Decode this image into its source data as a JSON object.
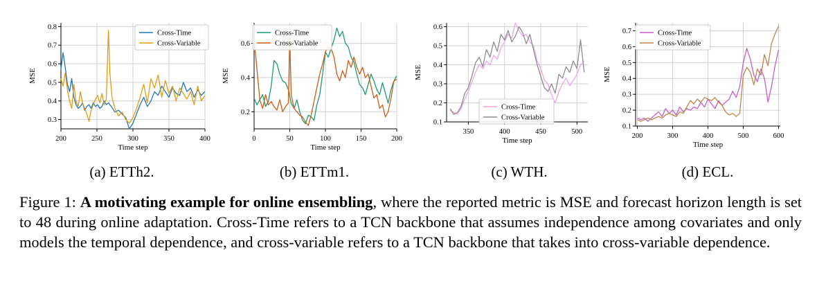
{
  "chart_data": [
    {
      "type": "line",
      "panel": "a",
      "xlabel": "Time step",
      "ylabel": "MSE",
      "xlim": [
        200,
        400
      ],
      "ylim": [
        0.25,
        0.82
      ],
      "xticks": [
        200,
        250,
        300,
        350,
        400
      ],
      "yticks": [
        0.3,
        0.4,
        0.5,
        0.6,
        0.7,
        0.8
      ],
      "grid": true,
      "legend_position": "top-right",
      "series": [
        {
          "name": "Cross-Time",
          "color": "#1f77b4",
          "x": [
            200,
            203,
            206,
            209,
            212,
            215,
            218,
            221,
            224,
            227,
            230,
            233,
            236,
            239,
            242,
            245,
            248,
            251,
            254,
            257,
            260,
            263,
            266,
            270,
            275,
            280,
            285,
            290,
            295,
            300,
            305,
            310,
            315,
            320,
            325,
            330,
            335,
            340,
            345,
            350,
            355,
            360,
            365,
            370,
            375,
            380,
            385,
            390,
            395,
            400
          ],
          "y": [
            0.57,
            0.66,
            0.58,
            0.49,
            0.45,
            0.52,
            0.42,
            0.38,
            0.36,
            0.37,
            0.39,
            0.35,
            0.37,
            0.38,
            0.36,
            0.39,
            0.37,
            0.38,
            0.36,
            0.37,
            0.4,
            0.38,
            0.39,
            0.37,
            0.34,
            0.35,
            0.33,
            0.31,
            0.25,
            0.28,
            0.33,
            0.38,
            0.42,
            0.37,
            0.4,
            0.45,
            0.43,
            0.48,
            0.45,
            0.42,
            0.47,
            0.44,
            0.43,
            0.5,
            0.45,
            0.47,
            0.42,
            0.46,
            0.43,
            0.45
          ]
        },
        {
          "name": "Cross-Variable",
          "color": "#e69b11",
          "x": [
            200,
            203,
            206,
            209,
            212,
            215,
            218,
            221,
            224,
            227,
            230,
            233,
            236,
            239,
            242,
            245,
            248,
            251,
            254,
            257,
            260,
            263,
            266,
            268,
            271,
            275,
            280,
            285,
            290,
            295,
            300,
            305,
            310,
            315,
            320,
            325,
            330,
            335,
            340,
            345,
            350,
            355,
            360,
            365,
            370,
            375,
            380,
            385,
            390,
            395,
            400
          ],
          "y": [
            0.52,
            0.48,
            0.55,
            0.46,
            0.4,
            0.36,
            0.49,
            0.4,
            0.37,
            0.45,
            0.39,
            0.36,
            0.33,
            0.29,
            0.35,
            0.38,
            0.41,
            0.43,
            0.39,
            0.44,
            0.38,
            0.41,
            0.78,
            0.55,
            0.42,
            0.36,
            0.32,
            0.34,
            0.3,
            0.28,
            0.31,
            0.36,
            0.42,
            0.49,
            0.39,
            0.52,
            0.47,
            0.54,
            0.42,
            0.51,
            0.44,
            0.48,
            0.4,
            0.47,
            0.44,
            0.41,
            0.45,
            0.38,
            0.48,
            0.4,
            0.43
          ]
        }
      ]
    },
    {
      "type": "line",
      "panel": "b",
      "xlabel": "Time step",
      "ylabel": "MSE",
      "xlim": [
        0,
        200
      ],
      "ylim": [
        0.1,
        0.72
      ],
      "xticks": [
        0,
        50,
        100,
        150,
        200
      ],
      "yticks": [
        0.2,
        0.4,
        0.6
      ],
      "grid": true,
      "legend_position": "top",
      "series": [
        {
          "name": "Cross-Time",
          "color": "#1a9a72",
          "x": [
            0,
            4,
            8,
            12,
            16,
            20,
            24,
            28,
            32,
            36,
            40,
            44,
            48,
            52,
            56,
            60,
            64,
            68,
            72,
            76,
            80,
            84,
            88,
            92,
            96,
            100,
            104,
            108,
            112,
            116,
            120,
            124,
            128,
            132,
            136,
            140,
            144,
            148,
            152,
            156,
            160,
            164,
            168,
            172,
            176,
            180,
            184,
            188,
            192,
            196,
            200
          ],
          "y": [
            0.28,
            0.24,
            0.27,
            0.3,
            0.23,
            0.26,
            0.35,
            0.5,
            0.48,
            0.42,
            0.38,
            0.37,
            0.33,
            0.25,
            0.22,
            0.27,
            0.2,
            0.15,
            0.13,
            0.18,
            0.17,
            0.15,
            0.24,
            0.3,
            0.42,
            0.55,
            0.52,
            0.57,
            0.62,
            0.69,
            0.64,
            0.67,
            0.6,
            0.58,
            0.52,
            0.49,
            0.42,
            0.36,
            0.34,
            0.3,
            0.36,
            0.42,
            0.38,
            0.33,
            0.3,
            0.37,
            0.31,
            0.25,
            0.33,
            0.38,
            0.41
          ]
        },
        {
          "name": "Cross-Variable",
          "color": "#d35a10",
          "x": [
            0,
            4,
            8,
            12,
            16,
            20,
            24,
            28,
            32,
            36,
            40,
            44,
            48,
            50,
            52,
            56,
            60,
            64,
            68,
            72,
            76,
            80,
            84,
            88,
            92,
            96,
            100,
            104,
            108,
            112,
            116,
            120,
            124,
            128,
            132,
            136,
            140,
            144,
            148,
            152,
            156,
            160,
            164,
            168,
            172,
            176,
            180,
            184,
            188,
            192,
            196,
            200
          ],
          "y": [
            0.63,
            0.45,
            0.27,
            0.22,
            0.3,
            0.24,
            0.26,
            0.23,
            0.21,
            0.27,
            0.2,
            0.23,
            0.25,
            0.63,
            0.3,
            0.22,
            0.2,
            0.18,
            0.17,
            0.14,
            0.12,
            0.18,
            0.26,
            0.34,
            0.42,
            0.48,
            0.55,
            0.58,
            0.57,
            0.52,
            0.42,
            0.38,
            0.44,
            0.4,
            0.5,
            0.46,
            0.52,
            0.46,
            0.42,
            0.46,
            0.4,
            0.42,
            0.35,
            0.28,
            0.3,
            0.22,
            0.24,
            0.17,
            0.2,
            0.28,
            0.38,
            0.39
          ]
        }
      ]
    },
    {
      "type": "line",
      "panel": "c",
      "xlabel": "Time step",
      "ylabel": "MSE",
      "xlim": [
        320,
        515
      ],
      "ylim": [
        0.1,
        0.62
      ],
      "xticks": [
        350,
        400,
        450,
        500
      ],
      "yticks": [
        0.1,
        0.2,
        0.3,
        0.4,
        0.5,
        0.6
      ],
      "grid": true,
      "legend_position": "bottom-center",
      "series": [
        {
          "name": "Cross-Time",
          "color": "#f2a3e6",
          "x": [
            325,
            330,
            335,
            340,
            345,
            350,
            355,
            360,
            365,
            370,
            375,
            380,
            385,
            390,
            395,
            400,
            405,
            410,
            415,
            420,
            425,
            430,
            435,
            440,
            445,
            450,
            455,
            460,
            465,
            470,
            475,
            480,
            485,
            490,
            495,
            500,
            505,
            510
          ],
          "y": [
            0.16,
            0.15,
            0.14,
            0.17,
            0.22,
            0.26,
            0.31,
            0.36,
            0.4,
            0.38,
            0.42,
            0.4,
            0.45,
            0.43,
            0.49,
            0.52,
            0.56,
            0.54,
            0.62,
            0.58,
            0.55,
            0.56,
            0.52,
            0.5,
            0.42,
            0.38,
            0.32,
            0.3,
            0.24,
            0.2,
            0.26,
            0.3,
            0.33,
            0.29,
            0.32,
            0.35,
            0.4,
            0.42
          ]
        },
        {
          "name": "Cross-Variable",
          "color": "#8c8c8c",
          "x": [
            325,
            330,
            335,
            340,
            345,
            350,
            355,
            360,
            365,
            370,
            375,
            380,
            385,
            390,
            395,
            400,
            405,
            410,
            415,
            420,
            425,
            430,
            435,
            440,
            445,
            450,
            455,
            460,
            465,
            470,
            475,
            480,
            485,
            490,
            495,
            500,
            505,
            510
          ],
          "y": [
            0.17,
            0.14,
            0.15,
            0.18,
            0.25,
            0.28,
            0.34,
            0.41,
            0.44,
            0.39,
            0.48,
            0.44,
            0.52,
            0.47,
            0.56,
            0.53,
            0.58,
            0.52,
            0.55,
            0.6,
            0.57,
            0.51,
            0.56,
            0.48,
            0.4,
            0.34,
            0.28,
            0.26,
            0.3,
            0.25,
            0.35,
            0.33,
            0.39,
            0.36,
            0.42,
            0.38,
            0.53,
            0.36
          ]
        }
      ]
    },
    {
      "type": "line",
      "panel": "d",
      "xlabel": "Time step",
      "ylabel": "MSE",
      "xlim": [
        195,
        605
      ],
      "ylim": [
        0.1,
        0.75
      ],
      "xticks": [
        200,
        300,
        400,
        500,
        600
      ],
      "yticks": [
        0.1,
        0.2,
        0.3,
        0.4,
        0.5,
        0.6,
        0.7
      ],
      "grid": true,
      "legend_position": "top",
      "series": [
        {
          "name": "Cross-Time",
          "color": "#c75fc7",
          "x": [
            200,
            210,
            220,
            230,
            240,
            250,
            260,
            270,
            280,
            290,
            300,
            310,
            320,
            330,
            340,
            350,
            360,
            370,
            380,
            390,
            400,
            410,
            420,
            430,
            440,
            450,
            460,
            470,
            480,
            490,
            500,
            510,
            520,
            530,
            540,
            550,
            560,
            570,
            580,
            590,
            600
          ],
          "y": [
            0.15,
            0.14,
            0.15,
            0.13,
            0.15,
            0.17,
            0.19,
            0.16,
            0.21,
            0.18,
            0.2,
            0.17,
            0.22,
            0.19,
            0.21,
            0.2,
            0.22,
            0.21,
            0.25,
            0.22,
            0.27,
            0.24,
            0.21,
            0.26,
            0.23,
            0.25,
            0.27,
            0.32,
            0.28,
            0.35,
            0.5,
            0.59,
            0.52,
            0.42,
            0.38,
            0.46,
            0.4,
            0.25,
            0.35,
            0.48,
            0.58
          ]
        },
        {
          "name": "Cross-Variable",
          "color": "#c0854a",
          "x": [
            200,
            210,
            220,
            230,
            240,
            250,
            260,
            270,
            280,
            290,
            300,
            310,
            320,
            330,
            340,
            350,
            360,
            370,
            380,
            390,
            400,
            410,
            420,
            430,
            440,
            450,
            460,
            470,
            480,
            490,
            500,
            510,
            520,
            530,
            540,
            550,
            560,
            570,
            580,
            590,
            600
          ],
          "y": [
            0.14,
            0.13,
            0.14,
            0.15,
            0.14,
            0.15,
            0.16,
            0.15,
            0.17,
            0.18,
            0.17,
            0.16,
            0.19,
            0.18,
            0.22,
            0.26,
            0.24,
            0.27,
            0.25,
            0.28,
            0.27,
            0.26,
            0.28,
            0.25,
            0.23,
            0.19,
            0.17,
            0.18,
            0.16,
            0.18,
            0.42,
            0.47,
            0.44,
            0.36,
            0.46,
            0.42,
            0.55,
            0.48,
            0.62,
            0.68,
            0.73
          ]
        }
      ]
    }
  ],
  "subcaptions": [
    "(a) ETTh2.",
    "(b) ETTm1.",
    "(c) WTH.",
    "(d) ECL."
  ],
  "caption": {
    "label": "Figure 1: ",
    "bold": "A motivating example for online ensembling",
    "text": ", where the reported metric is MSE and forecast horizon length is set to 48 during online adaptation. Cross-Time refers to a TCN backbone that assumes independence among covariates and only models the temporal dependence, and cross-variable refers to a TCN backbone that takes into cross-variable dependence."
  }
}
